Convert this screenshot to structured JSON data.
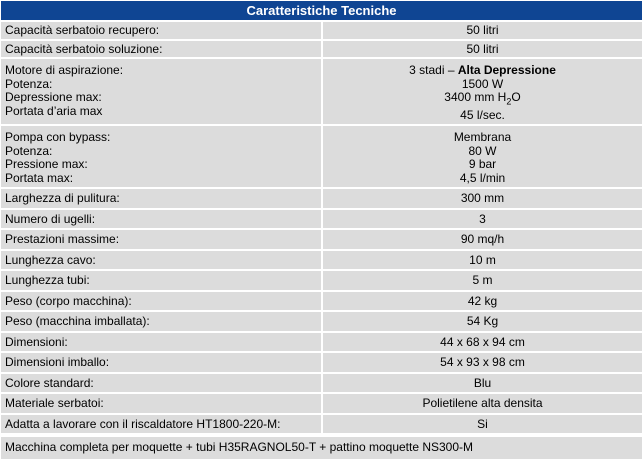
{
  "title": "Caratteristiche Tecniche",
  "rows": [
    {
      "label": [
        "Capacità serbatoio recupero:"
      ],
      "value": [
        "50 litri"
      ]
    },
    {
      "label": [
        "Capacità serbatoio soluzione:"
      ],
      "value": [
        "50 litri"
      ]
    },
    {
      "label": [
        "Motore di aspirazione:",
        "Potenza:",
        "Depressione max:",
        "Portata d’aria max"
      ],
      "value": [
        "3 stadi – ",
        "1500 W",
        "3400 mm H",
        "45 l/sec."
      ],
      "value_bold": "Alta Depressione",
      "value_sub": "2",
      "value_after_sub": "O"
    },
    {
      "label": [
        "Pompa con bypass:",
        "Potenza:",
        "Pressione max:",
        "Portata max:"
      ],
      "value": [
        "Membrana",
        "80 W",
        "9 bar",
        "4,5 l/min"
      ]
    },
    {
      "label": [
        "Larghezza di pulitura:"
      ],
      "value": [
        "300 mm"
      ]
    },
    {
      "label": [
        "Numero di ugelli:"
      ],
      "value": [
        "3"
      ]
    },
    {
      "label": [
        "Prestazioni massime:"
      ],
      "value": [
        "90 mq/h"
      ]
    },
    {
      "label": [
        "Lunghezza cavo:"
      ],
      "value": [
        "10 m"
      ]
    },
    {
      "label": [
        "Lunghezza tubi:"
      ],
      "value": [
        "5 m"
      ]
    },
    {
      "label": [
        "Peso (corpo macchina):"
      ],
      "value": [
        "42 kg"
      ]
    },
    {
      "label": [
        "Peso (macchina imballata):"
      ],
      "value": [
        "54 Kg"
      ]
    },
    {
      "label": [
        "Dimensioni:"
      ],
      "value": [
        "44 x 68 x 94 cm"
      ]
    },
    {
      "label": [
        "Dimensioni imballo:"
      ],
      "value": [
        "54 x 93 x 98 cm"
      ]
    },
    {
      "label": [
        "Colore standard:"
      ],
      "value": [
        "Blu"
      ]
    },
    {
      "label": [
        "Materiale serbatoi:"
      ],
      "value": [
        "Polietilene alta densita"
      ]
    },
    {
      "label": [
        "Adatta a lavorare con il riscaldatore HT1800-220-M:"
      ],
      "value": [
        "Si"
      ]
    }
  ],
  "footer": "Macchina completa per moquette + tubi H35RAGNOL50-T + pattino moquette NS300-M",
  "colors": {
    "header_bg": "#0f4593",
    "cell_bg": "#dcdcdc",
    "grid": "#ffffff"
  }
}
